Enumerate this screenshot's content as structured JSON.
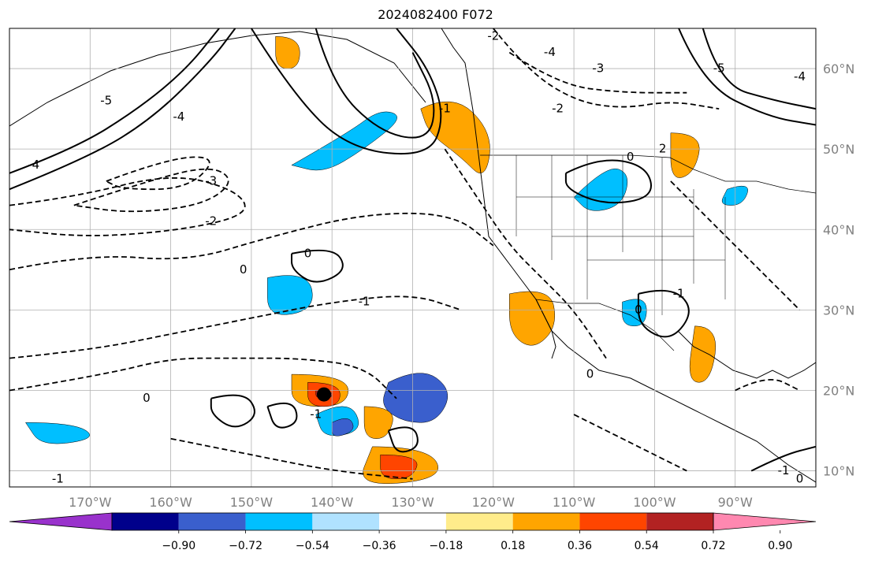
{
  "title": "2024082400 F072",
  "map": {
    "lon_range": [
      -180,
      -80
    ],
    "lat_range": [
      8,
      65
    ],
    "lon_ticks": [
      -170,
      -160,
      -150,
      -140,
      -130,
      -120,
      -110,
      -100,
      -90
    ],
    "lat_ticks": [
      10,
      20,
      30,
      40,
      50,
      60
    ],
    "lon_tick_labels": [
      "170°W",
      "160°W",
      "150°W",
      "140°W",
      "130°W",
      "120°W",
      "110°W",
      "100°W",
      "90°W"
    ],
    "lat_tick_labels": [
      "10°N",
      "20°N",
      "30°N",
      "40°N",
      "50°N",
      "60°N"
    ],
    "grid": true
  },
  "colorbar": {
    "colors": [
      "#9932cc",
      "#00008b",
      "#3a5fcd",
      "#00bfff",
      "#b0e2ff",
      "#ffffff",
      "#ffec8b",
      "#ffa500",
      "#ff4500",
      "#b22222",
      "#ff88b0"
    ],
    "tick_labels": [
      "−0.90",
      "−0.72",
      "−0.54",
      "−0.36",
      "−0.18",
      "0.18",
      "0.36",
      "0.54",
      "0.72",
      "0.90"
    ]
  },
  "contour_labels": [
    {
      "text": "0",
      "lon": -163,
      "lat": 19
    },
    {
      "text": "0",
      "lon": -151,
      "lat": 35
    },
    {
      "text": "0",
      "lon": -143,
      "lat": 37
    },
    {
      "text": "-1",
      "lon": -174,
      "lat": 9
    },
    {
      "text": "-1",
      "lon": -136,
      "lat": 31
    },
    {
      "text": "-1",
      "lon": -142,
      "lat": 17
    },
    {
      "text": "-2",
      "lon": -155,
      "lat": 41
    },
    {
      "text": "-3",
      "lon": -155,
      "lat": 46
    },
    {
      "text": "-4",
      "lon": -159,
      "lat": 54
    },
    {
      "text": "-5",
      "lon": -168,
      "lat": 56
    },
    {
      "text": "-4",
      "lon": -177,
      "lat": 48
    },
    {
      "text": "-3",
      "lon": -107,
      "lat": 60
    },
    {
      "text": "-4",
      "lon": -113,
      "lat": 62
    },
    {
      "text": "-2",
      "lon": -120,
      "lat": 64
    },
    {
      "text": "-1",
      "lon": -126,
      "lat": 55
    },
    {
      "text": "-2",
      "lon": -112,
      "lat": 55
    },
    {
      "text": "-5",
      "lon": -92,
      "lat": 60
    },
    {
      "text": "-4",
      "lon": -82,
      "lat": 59
    },
    {
      "text": "0",
      "lon": -103,
      "lat": 49
    },
    {
      "text": "2",
      "lon": -99,
      "lat": 50
    },
    {
      "text": "0",
      "lon": -102,
      "lat": 30
    },
    {
      "text": "-1",
      "lon": -97,
      "lat": 32
    },
    {
      "text": "0",
      "lon": -108,
      "lat": 22
    },
    {
      "text": "-1",
      "lon": -84,
      "lat": 10
    },
    {
      "text": "0",
      "lon": -82,
      "lat": 9
    }
  ],
  "shaded_regions": [
    {
      "level": 3,
      "pts": [
        [
          -145,
          48
        ],
        [
          -138,
          52
        ],
        [
          -134,
          55
        ],
        [
          -131,
          54
        ],
        [
          -136,
          50
        ],
        [
          -141,
          47
        ]
      ]
    },
    {
      "level": 3,
      "pts": [
        [
          -110,
          44
        ],
        [
          -106,
          48
        ],
        [
          -103,
          47
        ],
        [
          -104,
          43
        ],
        [
          -108,
          42
        ]
      ]
    },
    {
      "level": 3,
      "pts": [
        [
          -148,
          34
        ],
        [
          -143,
          35
        ],
        [
          -142,
          30
        ],
        [
          -148,
          29
        ]
      ]
    },
    {
      "level": 3,
      "pts": [
        [
          -142,
          17
        ],
        [
          -138,
          19
        ],
        [
          -136,
          15
        ],
        [
          -141,
          14
        ]
      ]
    },
    {
      "level": 3,
      "pts": [
        [
          -178,
          16
        ],
        [
          -172,
          16
        ],
        [
          -169,
          14
        ],
        [
          -176,
          13
        ]
      ]
    },
    {
      "level": 3,
      "pts": [
        [
          -104,
          31
        ],
        [
          -101,
          32
        ],
        [
          -101,
          28
        ],
        [
          -104,
          28
        ]
      ]
    },
    {
      "level": 3,
      "pts": [
        [
          -91,
          45
        ],
        [
          -88,
          46
        ],
        [
          -89,
          43
        ],
        [
          -92,
          43
        ]
      ]
    },
    {
      "level": 2,
      "pts": [
        [
          -133,
          21
        ],
        [
          -129,
          23
        ],
        [
          -125,
          20
        ],
        [
          -127,
          16
        ],
        [
          -131,
          16
        ],
        [
          -134,
          18
        ]
      ]
    },
    {
      "level": 2,
      "pts": [
        [
          -140,
          16
        ],
        [
          -138,
          17
        ],
        [
          -137,
          15
        ],
        [
          -140,
          14
        ]
      ]
    },
    {
      "level": 7,
      "pts": [
        [
          -129,
          55
        ],
        [
          -125,
          57
        ],
        [
          -120,
          52
        ],
        [
          -121,
          46
        ],
        [
          -124,
          49
        ],
        [
          -128,
          52
        ]
      ]
    },
    {
      "level": 7,
      "pts": [
        [
          -98,
          52
        ],
        [
          -94,
          52
        ],
        [
          -95,
          47
        ],
        [
          -98,
          46
        ]
      ]
    },
    {
      "level": 7,
      "pts": [
        [
          -118,
          32
        ],
        [
          -113,
          33
        ],
        [
          -112,
          28
        ],
        [
          -115,
          25
        ],
        [
          -118,
          27
        ]
      ]
    },
    {
      "level": 7,
      "pts": [
        [
          -135,
          13
        ],
        [
          -128,
          13
        ],
        [
          -126,
          9
        ],
        [
          -137,
          8
        ]
      ]
    },
    {
      "level": 7,
      "pts": [
        [
          -95,
          28
        ],
        [
          -92,
          28
        ],
        [
          -93,
          21
        ],
        [
          -96,
          21
        ]
      ]
    },
    {
      "level": 7,
      "pts": [
        [
          -145,
          22
        ],
        [
          -138,
          22
        ],
        [
          -138,
          18
        ],
        [
          -145,
          18
        ]
      ]
    },
    {
      "level": 7,
      "pts": [
        [
          -147,
          64
        ],
        [
          -144,
          64
        ],
        [
          -144,
          60
        ],
        [
          -147,
          60
        ]
      ]
    },
    {
      "level": 7,
      "pts": [
        [
          -136,
          18
        ],
        [
          -132,
          18
        ],
        [
          -133,
          14
        ],
        [
          -136,
          14
        ]
      ]
    },
    {
      "level": 8,
      "pts": [
        [
          -143,
          21
        ],
        [
          -139,
          21
        ],
        [
          -139,
          18
        ],
        [
          -143,
          18
        ]
      ]
    },
    {
      "level": 8,
      "pts": [
        [
          -134,
          12
        ],
        [
          -129,
          12
        ],
        [
          -130,
          9
        ],
        [
          -134,
          9
        ]
      ]
    },
    {
      "level": 9,
      "pts": [
        [
          -142,
          20
        ],
        [
          -140,
          20
        ],
        [
          -140,
          19
        ],
        [
          -142,
          19
        ]
      ]
    }
  ],
  "solid_contours": [
    [
      [
        -180,
        47
      ],
      [
        -172,
        50
      ],
      [
        -164,
        55
      ],
      [
        -158,
        60
      ],
      [
        -154,
        65
      ]
    ],
    [
      [
        -180,
        45
      ],
      [
        -170,
        49
      ],
      [
        -162,
        54
      ],
      [
        -155,
        61
      ],
      [
        -152,
        65
      ]
    ],
    [
      [
        -150,
        65
      ],
      [
        -145,
        57
      ],
      [
        -138,
        50
      ],
      [
        -128,
        49
      ],
      [
        -126,
        54
      ],
      [
        -128,
        60
      ],
      [
        -132,
        65
      ]
    ],
    [
      [
        -142,
        65
      ],
      [
        -140,
        58
      ],
      [
        -134,
        52
      ],
      [
        -128,
        51
      ],
      [
        -127,
        56
      ],
      [
        -130,
        62
      ]
    ],
    [
      [
        -94,
        65
      ],
      [
        -92,
        58
      ],
      [
        -85,
        56
      ],
      [
        -80,
        55
      ]
    ],
    [
      [
        -97,
        65
      ],
      [
        -94,
        58
      ],
      [
        -86,
        54
      ],
      [
        -80,
        53
      ]
    ],
    [
      [
        -111,
        47
      ],
      [
        -107,
        49
      ],
      [
        -101,
        48
      ],
      [
        -100,
        44
      ],
      [
        -106,
        43
      ],
      [
        -111,
        45
      ],
      [
        -111,
        47
      ]
    ],
    [
      [
        -102,
        32
      ],
      [
        -98,
        33
      ],
      [
        -95,
        30
      ],
      [
        -98,
        26
      ],
      [
        -102,
        28
      ],
      [
        -102,
        32
      ]
    ],
    [
      [
        -145,
        37
      ],
      [
        -140,
        38
      ],
      [
        -138,
        35
      ],
      [
        -142,
        33
      ],
      [
        -145,
        35
      ],
      [
        -145,
        37
      ]
    ],
    [
      [
        -155,
        19
      ],
      [
        -151,
        20
      ],
      [
        -149,
        17
      ],
      [
        -152,
        15
      ],
      [
        -155,
        17
      ],
      [
        -155,
        19
      ]
    ],
    [
      [
        -148,
        18
      ],
      [
        -145,
        19
      ],
      [
        -144,
        16
      ],
      [
        -147,
        15
      ],
      [
        -148,
        18
      ]
    ],
    [
      [
        -133,
        15
      ],
      [
        -130,
        16
      ],
      [
        -129,
        13
      ],
      [
        -132,
        12
      ],
      [
        -133,
        15
      ]
    ],
    [
      [
        -88,
        10
      ],
      [
        -84,
        12
      ],
      [
        -80,
        13
      ]
    ]
  ],
  "dashed_contours": [
    [
      [
        -180,
        43
      ],
      [
        -172,
        44
      ],
      [
        -160,
        47
      ],
      [
        -152,
        45
      ],
      [
        -150,
        42
      ],
      [
        -158,
        40
      ],
      [
        -170,
        39
      ],
      [
        -180,
        40
      ]
    ],
    [
      [
        -172,
        43
      ],
      [
        -163,
        46
      ],
      [
        -155,
        48
      ],
      [
        -152,
        46
      ],
      [
        -156,
        43
      ],
      [
        -165,
        42
      ],
      [
        -172,
        43
      ]
    ],
    [
      [
        -168,
        46
      ],
      [
        -160,
        49
      ],
      [
        -154,
        49
      ],
      [
        -158,
        45
      ],
      [
        -166,
        45
      ],
      [
        -168,
        46
      ]
    ],
    [
      [
        -180,
        35
      ],
      [
        -170,
        37
      ],
      [
        -158,
        36
      ],
      [
        -148,
        39
      ],
      [
        -136,
        42
      ],
      [
        -125,
        42
      ],
      [
        -120,
        38
      ]
    ],
    [
      [
        -180,
        24
      ],
      [
        -170,
        25
      ],
      [
        -160,
        27
      ],
      [
        -150,
        29
      ],
      [
        -140,
        31
      ],
      [
        -130,
        32
      ],
      [
        -124,
        30
      ]
    ],
    [
      [
        -180,
        20
      ],
      [
        -168,
        22
      ],
      [
        -160,
        24
      ],
      [
        -152,
        24
      ],
      [
        -144,
        24
      ],
      [
        -136,
        23
      ],
      [
        -132,
        19
      ]
    ],
    [
      [
        -160,
        14
      ],
      [
        -150,
        12
      ],
      [
        -140,
        10
      ],
      [
        -130,
        9
      ]
    ],
    [
      [
        -120,
        65
      ],
      [
        -116,
        60
      ],
      [
        -110,
        56
      ],
      [
        -104,
        55
      ],
      [
        -98,
        56
      ],
      [
        -92,
        55
      ]
    ],
    [
      [
        -118,
        62
      ],
      [
        -112,
        58
      ],
      [
        -104,
        57
      ],
      [
        -96,
        57
      ]
    ],
    [
      [
        -126,
        50
      ],
      [
        -122,
        44
      ],
      [
        -118,
        38
      ],
      [
        -114,
        34
      ],
      [
        -110,
        30
      ],
      [
        -106,
        24
      ]
    ],
    [
      [
        -98,
        46
      ],
      [
        -94,
        42
      ],
      [
        -90,
        38
      ],
      [
        -86,
        34
      ],
      [
        -82,
        30
      ]
    ],
    [
      [
        -90,
        20
      ],
      [
        -86,
        22
      ],
      [
        -82,
        20
      ]
    ],
    [
      [
        -110,
        17
      ],
      [
        -104,
        14
      ],
      [
        -100,
        12
      ],
      [
        -96,
        10
      ]
    ]
  ],
  "markers": [
    {
      "lon": -141,
      "lat": 19.5
    }
  ]
}
